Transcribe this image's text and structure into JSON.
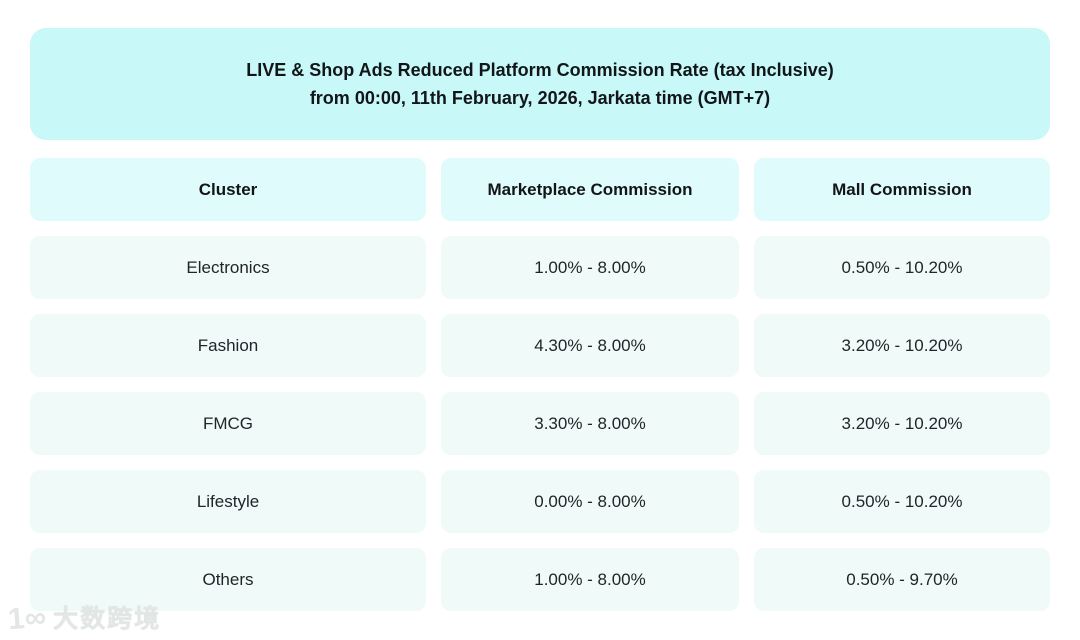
{
  "chart_data": {
    "type": "table",
    "title": "LIVE & Shop Ads Reduced Platform Commission Rate (tax Inclusive)",
    "subtitle": "from 00:00, 11th February, 2026, Jarkata time (GMT+7)",
    "columns": [
      "Cluster",
      "Marketplace Commission",
      "Mall Commission"
    ],
    "rows": [
      [
        "Electronics",
        "1.00% - 8.00%",
        "0.50% - 10.20%"
      ],
      [
        "Fashion",
        "4.30% - 8.00%",
        "3.20% - 10.20%"
      ],
      [
        "FMCG",
        "3.30% - 8.00%",
        "3.20% - 10.20%"
      ],
      [
        "Lifestyle",
        "0.00% - 8.00%",
        "0.50% - 10.20%"
      ],
      [
        "Others",
        "1.00% - 8.00%",
        "0.50% - 9.70%"
      ]
    ],
    "layout": {
      "grid": "off",
      "header_row": true
    }
  },
  "watermark": {
    "logo_text": "1∞",
    "brand": "大数跨境"
  },
  "colors": {
    "banner_bg": "#c8f8f8",
    "header_cell_bg": "#dffbfb",
    "data_cell_bg": "#f0faf8",
    "text": "#212529",
    "watermark": "#e2e6e5",
    "page_bg": "#ffffff"
  }
}
